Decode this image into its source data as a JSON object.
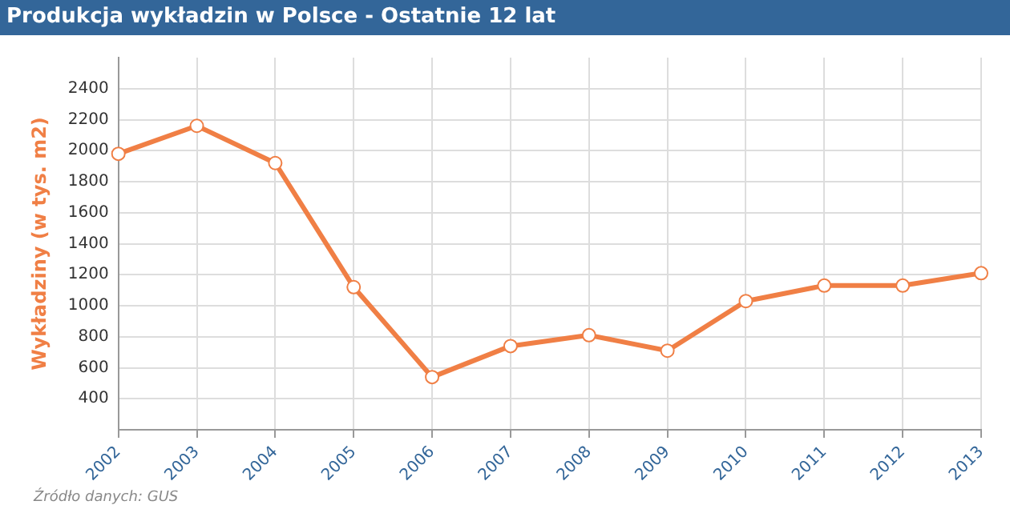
{
  "chart_data": {
    "type": "line",
    "title": "Produkcja wykładzin w Polsce - Ostatnie 12 lat",
    "ylabel": "Wykładziny (w tys. m2)",
    "categories": [
      "2002",
      "2003",
      "2004",
      "2005",
      "2006",
      "2007",
      "2008",
      "2009",
      "2010",
      "2011",
      "2012",
      "2013"
    ],
    "series": [
      {
        "color": "#f07f45",
        "values": [
          1980,
          2160,
          1920,
          1120,
          540,
          740,
          810,
          710,
          1030,
          1130,
          1130,
          1210
        ]
      }
    ],
    "ylim": [
      200,
      2600
    ],
    "yticks": [
      400,
      600,
      800,
      1000,
      1200,
      1400,
      1600,
      1800,
      2000,
      2200,
      2400
    ],
    "grid": true,
    "legend": false,
    "marker": "circle",
    "line_style": "solid",
    "annotations": [
      "Źródło danych: GUS"
    ]
  }
}
